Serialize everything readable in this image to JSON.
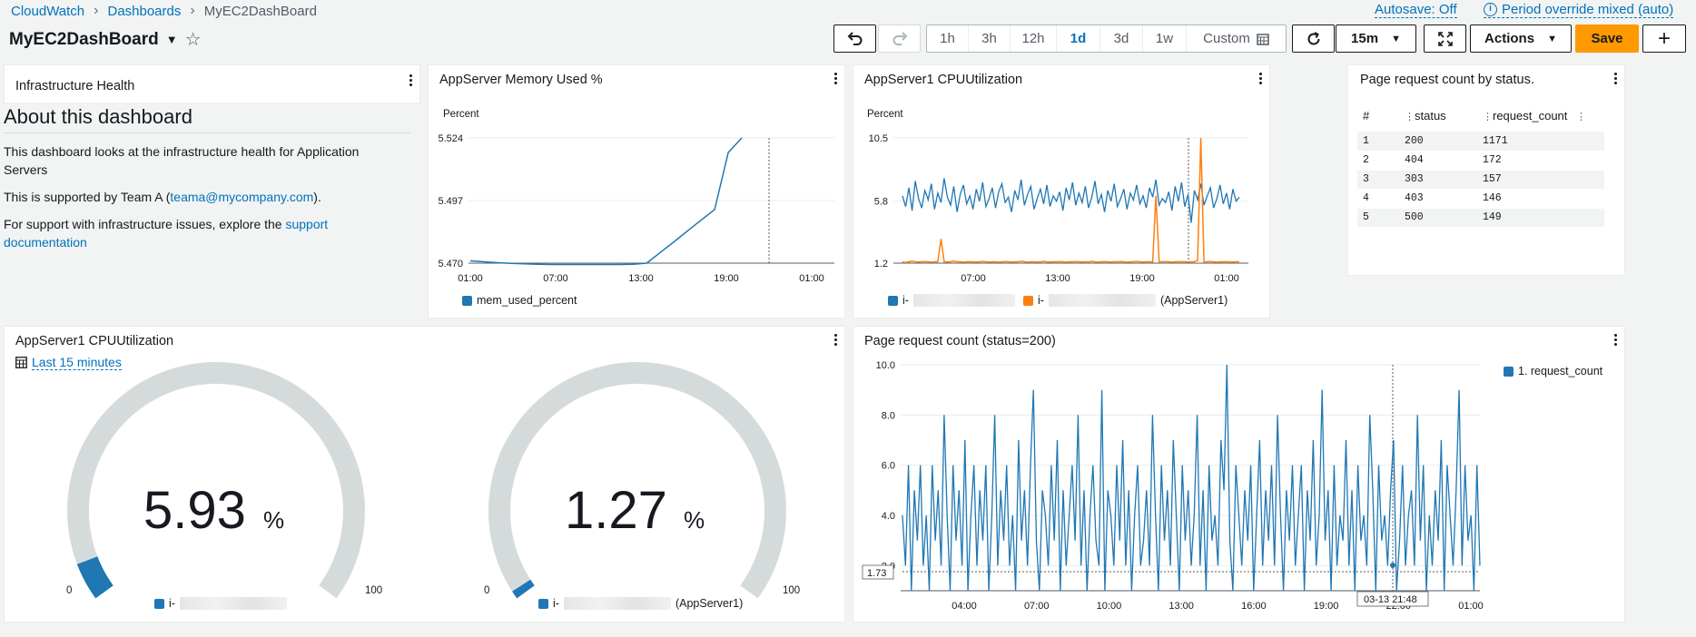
{
  "breadcrumb": {
    "items": [
      "CloudWatch",
      "Dashboards"
    ],
    "current": "MyEC2DashBoard"
  },
  "dashboard": {
    "title": "MyEC2DashBoard"
  },
  "header": {
    "autosave": "Autosave: Off",
    "period": "Period override mixed (auto)"
  },
  "toolbar": {
    "time_ranges": [
      "1h",
      "3h",
      "12h",
      "1d",
      "3d",
      "1w"
    ],
    "active_range": "1d",
    "custom": "Custom",
    "refresh_interval": "15m",
    "actions": "Actions",
    "save": "Save"
  },
  "colors": {
    "blue": "#1f77b4",
    "orange": "#ff7f0e",
    "accent": "#0073bb",
    "save": "#ff9900"
  },
  "infra": {
    "title": "Infrastructure Health",
    "heading": "About this dashboard",
    "p1": "This dashboard looks at the infrastructure health for Application Servers",
    "p2_pre": "This is supported by Team A (",
    "p2_link": "teama@mycompany.com",
    "p2_post": ").",
    "p3_pre": "For support with infrastructure issues, explore the",
    "p3_link": "support documentation"
  },
  "memory": {
    "title": "AppServer Memory Used %",
    "unit": "Percent",
    "legend": "mem_used_percent"
  },
  "cpu_line": {
    "title": "AppServer1 CPUUtilization",
    "unit": "Percent",
    "legend1": "i-",
    "legend2_pre": "i-",
    "legend2_post": "(AppServer1)"
  },
  "status_table": {
    "title": "Page request count by status.",
    "columns": [
      "#",
      "status",
      "request_count"
    ],
    "rows": [
      [
        "1",
        "200",
        "1171"
      ],
      [
        "2",
        "404",
        "172"
      ],
      [
        "3",
        "303",
        "157"
      ],
      [
        "4",
        "403",
        "146"
      ],
      [
        "5",
        "500",
        "149"
      ]
    ]
  },
  "gauges": {
    "title": "AppServer1 CPUUtilization",
    "period": "Last 15 minutes",
    "min": "0",
    "max": "100",
    "unit": "%",
    "g1": {
      "value": "5.93",
      "legend": "i-"
    },
    "g2": {
      "value": "1.27",
      "legend_pre": "i-",
      "legend_post": "(AppServer1)"
    }
  },
  "requests": {
    "title": "Page request count (status=200)",
    "legend": "1. request_count",
    "cursor_value": "1.73",
    "cursor_time": "03-13 21:48"
  },
  "chart_data": [
    {
      "type": "line",
      "title": "AppServer Memory Used %",
      "ylabel": "Percent",
      "x_ticks": [
        "01:00",
        "07:00",
        "13:00",
        "19:00",
        "01:00"
      ],
      "y_ticks": [
        5.47,
        5.497,
        5.524
      ],
      "ylim": [
        5.47,
        5.524
      ],
      "series": [
        {
          "name": "mem_used_percent",
          "color": "#1f77b4",
          "x": [
            0,
            1,
            2,
            3,
            4,
            5,
            6,
            7,
            8,
            9,
            10,
            11,
            12,
            13,
            14,
            15,
            16,
            17,
            18,
            19,
            20
          ],
          "y": [
            5.471,
            5.4706,
            5.4702,
            5.4699,
            5.4697,
            5.4695,
            5.4694,
            5.4694,
            5.4694,
            5.4694,
            5.4694,
            5.4694,
            5.4695,
            5.47,
            5.4746,
            5.4792,
            5.4839,
            5.4885,
            5.4931,
            5.5177,
            5.524
          ]
        }
      ]
    },
    {
      "type": "line",
      "title": "AppServer1 CPUUtilization",
      "ylabel": "Percent",
      "x_ticks": [
        "07:00",
        "13:00",
        "19:00",
        "01:00"
      ],
      "y_ticks": [
        1.2,
        5.8,
        10.5
      ],
      "ylim": [
        1.2,
        10.5
      ],
      "series": [
        {
          "name": "i-",
          "color": "#1f77b4",
          "values": [
            6.2,
            5.4,
            6.8,
            5.1,
            7.3,
            6,
            5.3,
            6.6,
            5.9,
            7.1,
            5.2,
            6.4,
            5.7,
            7.5,
            6.1,
            5.5,
            6.9,
            5.0,
            6.3,
            7.0,
            5.6,
            6.2,
            5.2,
            6.7,
            5.8,
            7.2,
            5.4,
            6.0,
            6.8,
            5.3,
            6.5,
            7.1,
            5.7,
            6.1,
            5.0,
            6.6,
            5.9,
            7.4,
            5.5,
            6.3,
            6.9,
            5.2,
            6.0,
            6.7,
            5.6,
            7.0,
            5.4,
            6.2,
            5.8,
            6.5,
            5.1,
            6.8,
            5.9,
            7.2,
            5.5,
            6.4,
            5.7,
            6.9,
            5.3,
            6.1,
            7.3,
            5.6,
            6.3,
            5.0,
            6.6,
            5.8,
            7.1,
            5.4,
            6.0,
            6.7,
            5.2,
            6.4,
            5.9,
            7.0,
            5.6,
            6.2,
            5.3,
            6.8,
            6.1,
            7.4,
            5.5,
            6.0,
            5.7,
            6.5,
            5.1,
            6.9,
            5.8,
            7.2,
            5.4,
            6.3,
            4.2,
            6.6,
            5.9,
            7.1,
            5.5,
            6.2,
            6.8,
            5.3,
            6.0,
            7.0,
            5.6,
            6.4,
            5.2,
            6.7,
            5.8,
            6.1
          ]
        },
        {
          "name": "i- (AppServer1)",
          "color": "#ff7f0e",
          "values": [
            1.3,
            1.25,
            1.3,
            1.35,
            1.3,
            1.28,
            1.3,
            1.32,
            1.3,
            1.27,
            1.3,
            1.3,
            3.0,
            1.3,
            1.28,
            1.3,
            1.35,
            1.3,
            1.3,
            1.27,
            1.3,
            1.31,
            1.3,
            1.28,
            1.3,
            1.33,
            1.3,
            1.29,
            1.3,
            1.3,
            1.27,
            1.3,
            1.32,
            1.3,
            1.28,
            1.3,
            1.3,
            1.34,
            1.3,
            1.27,
            1.3,
            1.3,
            1.29,
            1.3,
            1.33,
            1.3,
            1.28,
            1.3,
            1.3,
            1.31,
            1.3,
            1.27,
            1.3,
            1.3,
            1.32,
            1.3,
            1.28,
            1.3,
            1.3,
            1.33,
            1.3,
            1.27,
            1.3,
            1.31,
            1.3,
            1.28,
            1.3,
            1.3,
            1.32,
            1.3,
            1.27,
            1.3,
            1.3,
            1.33,
            1.3,
            1.29,
            1.3,
            1.3,
            1.28,
            6.2,
            1.3,
            1.3,
            1.32,
            1.3,
            1.27,
            1.3,
            1.3,
            1.31,
            1.3,
            1.28,
            1.3,
            1.3,
            1.4,
            10.5,
            1.3,
            1.3,
            1.32,
            1.3,
            1.27,
            1.3,
            1.3,
            1.31,
            1.3,
            1.28,
            1.3,
            1.3
          ]
        }
      ]
    },
    {
      "type": "gauge",
      "title": "AppServer1 CPUUtilization",
      "range": [
        0,
        100
      ],
      "series": [
        {
          "name": "i-",
          "value": 5.93,
          "color": "#1f77b4"
        },
        {
          "name": "i- (AppServer1)",
          "value": 1.27,
          "color": "#1f77b4"
        }
      ]
    },
    {
      "type": "line",
      "title": "Page request count (status=200)",
      "x_ticks": [
        "04:00",
        "07:00",
        "10:00",
        "13:00",
        "16:00",
        "19:00",
        "22:00",
        "01:00"
      ],
      "y_ticks": [
        2.0,
        4.0,
        6.0,
        8.0,
        10.0
      ],
      "ylim": [
        1,
        10
      ],
      "series": [
        {
          "name": "1. request_count",
          "color": "#1f77b4",
          "values": [
            4,
            2,
            6,
            1,
            5,
            3,
            6,
            2,
            4,
            1,
            6,
            3,
            5,
            2,
            8,
            4,
            1,
            6,
            3,
            5,
            2,
            7,
            1,
            4,
            6,
            2,
            5,
            3,
            6,
            1,
            4,
            8,
            2,
            5,
            3,
            6,
            2,
            4,
            1,
            7,
            3,
            5,
            2,
            6,
            9,
            3,
            1,
            5,
            4,
            2,
            6,
            3,
            7,
            1,
            5,
            2,
            4,
            6,
            3,
            8,
            2,
            5,
            1,
            4,
            6,
            3,
            2,
            9,
            1,
            5,
            4,
            2,
            6,
            3,
            7,
            2,
            5,
            1,
            4,
            6,
            2,
            3,
            5,
            2,
            8,
            4,
            1,
            6,
            3,
            5,
            2,
            7,
            4,
            1,
            6,
            3,
            5,
            2,
            4,
            8,
            2,
            5,
            1,
            6,
            3,
            4,
            2,
            7,
            5,
            10,
            3,
            1,
            6,
            4,
            2,
            5,
            3,
            6,
            1,
            4,
            7,
            2,
            5,
            3,
            6,
            2,
            8,
            4,
            1,
            5,
            3,
            6,
            2,
            4,
            6,
            1,
            5,
            3,
            7,
            2,
            4,
            9,
            3,
            5,
            1,
            6,
            2,
            4,
            3,
            7,
            2,
            5,
            1,
            6,
            3,
            4,
            2,
            8,
            5,
            1,
            6,
            3,
            4,
            2,
            5,
            7,
            1,
            3,
            6,
            2,
            4,
            5,
            2,
            8,
            3,
            6,
            1,
            4,
            2,
            5,
            3,
            7,
            1,
            6,
            4,
            2,
            5,
            9,
            2,
            6,
            3,
            4,
            1,
            6,
            2
          ]
        }
      ]
    }
  ]
}
